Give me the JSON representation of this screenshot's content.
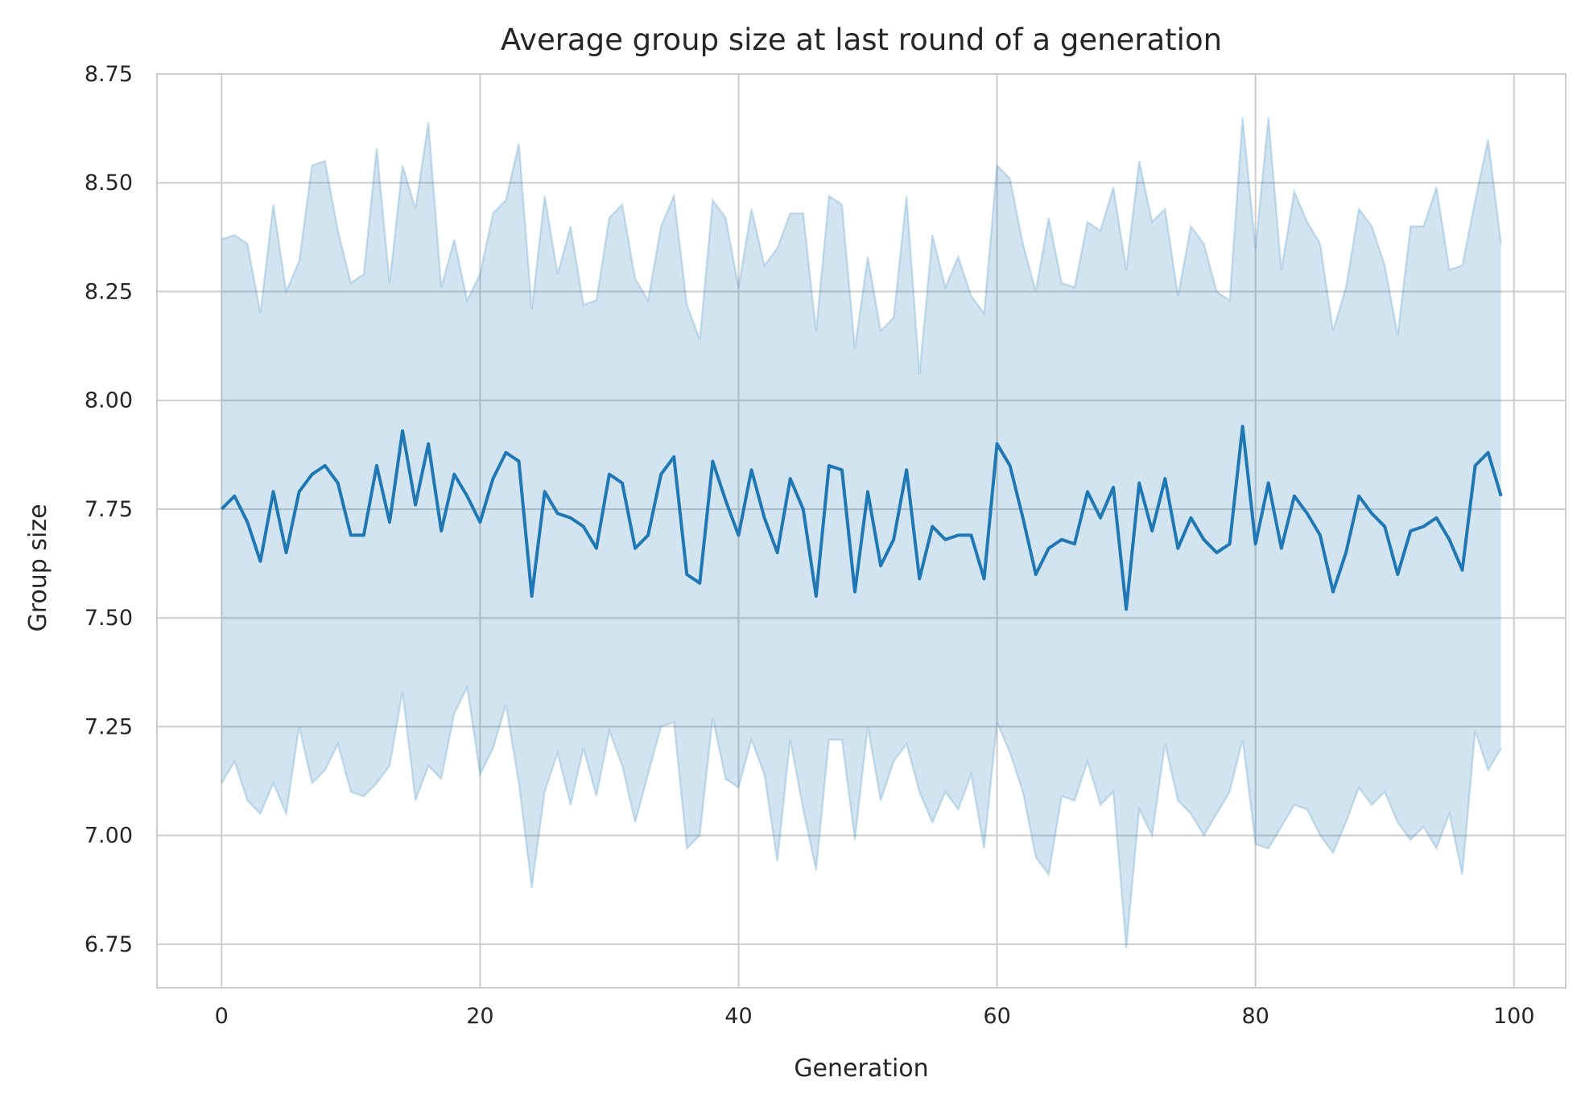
{
  "chart_data": {
    "type": "line",
    "title": "Average group size at last round of a generation",
    "xlabel": "Generation",
    "ylabel": "Group size",
    "xlim": [
      -5,
      104
    ],
    "ylim": [
      6.65,
      8.75
    ],
    "xticks": [
      0,
      20,
      40,
      60,
      80,
      100
    ],
    "yticks": [
      6.75,
      7.0,
      7.25,
      7.5,
      7.75,
      8.0,
      8.25,
      8.5,
      8.75
    ],
    "ytick_labels": [
      "6.75",
      "7.00",
      "7.25",
      "7.50",
      "7.75",
      "8.00",
      "8.25",
      "8.50",
      "8.75"
    ],
    "grid": true,
    "legend": "none",
    "colors": {
      "line": "#1f77b4",
      "band": "#1f77b4",
      "grid": "#cccccc",
      "spine": "#cccccc"
    },
    "series": [
      {
        "x": [
          0,
          1,
          2,
          3,
          4,
          5,
          6,
          7,
          8,
          9,
          10,
          11,
          12,
          13,
          14,
          15,
          16,
          17,
          18,
          19,
          20,
          21,
          22,
          23,
          24,
          25,
          26,
          27,
          28,
          29,
          30,
          31,
          32,
          33,
          34,
          35,
          36,
          37,
          38,
          39,
          40,
          41,
          42,
          43,
          44,
          45,
          46,
          47,
          48,
          49,
          50,
          51,
          52,
          53,
          54,
          55,
          56,
          57,
          58,
          59,
          60,
          61,
          62,
          63,
          64,
          65,
          66,
          67,
          68,
          69,
          70,
          71,
          72,
          73,
          74,
          75,
          76,
          77,
          78,
          79,
          80,
          81,
          82,
          83,
          84,
          85,
          86,
          87,
          88,
          89,
          90,
          91,
          92,
          93,
          94,
          95,
          96,
          97,
          98,
          99
        ],
        "y": [
          7.75,
          7.78,
          7.72,
          7.63,
          7.79,
          7.65,
          7.79,
          7.83,
          7.85,
          7.81,
          7.69,
          7.69,
          7.85,
          7.72,
          7.93,
          7.76,
          7.9,
          7.7,
          7.83,
          7.78,
          7.72,
          7.82,
          7.88,
          7.86,
          7.55,
          7.79,
          7.74,
          7.73,
          7.71,
          7.66,
          7.83,
          7.81,
          7.66,
          7.69,
          7.83,
          7.87,
          7.6,
          7.58,
          7.86,
          7.77,
          7.69,
          7.84,
          7.73,
          7.65,
          7.82,
          7.75,
          7.55,
          7.85,
          7.84,
          7.56,
          7.79,
          7.62,
          7.68,
          7.84,
          7.59,
          7.71,
          7.68,
          7.69,
          7.69,
          7.59,
          7.9,
          7.85,
          7.73,
          7.6,
          7.66,
          7.68,
          7.67,
          7.79,
          7.73,
          7.8,
          7.52,
          7.81,
          7.7,
          7.82,
          7.66,
          7.73,
          7.68,
          7.65,
          7.67,
          7.94,
          7.67,
          7.81,
          7.66,
          7.78,
          7.74,
          7.69,
          7.56,
          7.65,
          7.78,
          7.74,
          7.71,
          7.6,
          7.7,
          7.71,
          7.73,
          7.68,
          7.61,
          7.85,
          7.88,
          7.78
        ],
        "lower": [
          7.12,
          7.17,
          7.08,
          7.05,
          7.12,
          7.05,
          7.25,
          7.12,
          7.15,
          7.21,
          7.1,
          7.09,
          7.12,
          7.16,
          7.33,
          7.08,
          7.16,
          7.13,
          7.28,
          7.34,
          7.14,
          7.2,
          7.3,
          7.12,
          6.88,
          7.1,
          7.19,
          7.07,
          7.2,
          7.09,
          7.24,
          7.16,
          7.03,
          7.14,
          7.25,
          7.26,
          6.97,
          7.0,
          7.27,
          7.13,
          7.11,
          7.22,
          7.14,
          6.94,
          7.22,
          7.06,
          6.92,
          7.22,
          7.22,
          6.99,
          7.25,
          7.08,
          7.17,
          7.21,
          7.1,
          7.03,
          7.1,
          7.06,
          7.14,
          6.97,
          7.26,
          7.19,
          7.1,
          6.95,
          6.91,
          7.09,
          7.08,
          7.17,
          7.07,
          7.1,
          6.74,
          7.06,
          7.0,
          7.21,
          7.08,
          7.05,
          7.0,
          7.05,
          7.1,
          7.22,
          6.98,
          6.97,
          7.02,
          7.07,
          7.06,
          7.0,
          6.96,
          7.03,
          7.11,
          7.07,
          7.1,
          7.03,
          6.99,
          7.02,
          6.97,
          7.05,
          6.91,
          7.24,
          7.15,
          7.2
        ],
        "upper": [
          8.37,
          8.38,
          8.36,
          8.2,
          8.45,
          8.25,
          8.32,
          8.54,
          8.55,
          8.39,
          8.27,
          8.29,
          8.58,
          8.27,
          8.54,
          8.44,
          8.64,
          8.26,
          8.37,
          8.23,
          8.29,
          8.43,
          8.46,
          8.59,
          8.21,
          8.47,
          8.29,
          8.4,
          8.22,
          8.23,
          8.42,
          8.45,
          8.28,
          8.23,
          8.4,
          8.47,
          8.22,
          8.14,
          8.46,
          8.42,
          8.26,
          8.44,
          8.31,
          8.35,
          8.43,
          8.43,
          8.16,
          8.47,
          8.45,
          8.12,
          8.33,
          8.16,
          8.19,
          8.47,
          8.06,
          8.38,
          8.26,
          8.33,
          8.24,
          8.2,
          8.54,
          8.51,
          8.36,
          8.25,
          8.42,
          8.27,
          8.26,
          8.41,
          8.39,
          8.49,
          8.3,
          8.55,
          8.41,
          8.44,
          8.24,
          8.4,
          8.36,
          8.25,
          8.23,
          8.65,
          8.35,
          8.65,
          8.3,
          8.48,
          8.41,
          8.36,
          8.16,
          8.26,
          8.44,
          8.4,
          8.31,
          8.15,
          8.4,
          8.4,
          8.49,
          8.3,
          8.31,
          8.46,
          8.6,
          8.36
        ]
      }
    ]
  }
}
